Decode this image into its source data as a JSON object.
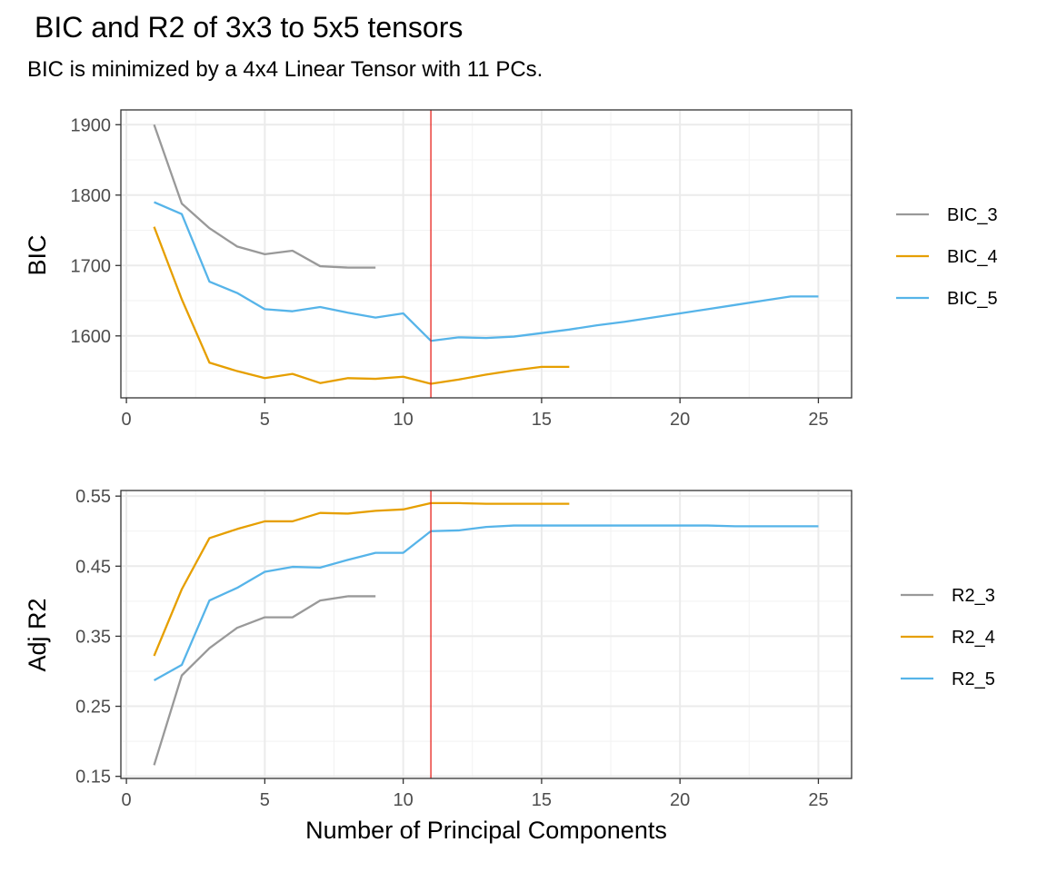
{
  "chart_data": {
    "title": "BIC and R2 of 3x3 to 5x5 tensors",
    "subtitle": "BIC is minimized by a 4x4 Linear Tensor with 11 PCs.",
    "xlabel": "Number of Principal Components",
    "colors": {
      "c3": "#999999",
      "c4": "#E69F00",
      "c5": "#56B4E9",
      "vline": "#E8231E"
    },
    "vline_x": 11,
    "grid": true,
    "legend_position": "right",
    "panels": [
      {
        "type": "line",
        "ylabel": "BIC",
        "xlim": [
          -0.2,
          26.2
        ],
        "ylim": [
          1512,
          1921
        ],
        "x_ticks": [
          0,
          5,
          10,
          15,
          20,
          25
        ],
        "x_tick_labels": [
          "0",
          "5",
          "10",
          "15",
          "20",
          "25"
        ],
        "y_ticks": [
          1600,
          1700,
          1800,
          1900
        ],
        "y_tick_labels": [
          "1600",
          "1700",
          "1800",
          "1900"
        ],
        "series": [
          {
            "name": "BIC_3",
            "color_key": "c3",
            "x": [
              1,
              2,
              3,
              4,
              5,
              6,
              7,
              8,
              9
            ],
            "y": [
              1900,
              1788,
              1753,
              1727,
              1716,
              1721,
              1699,
              1697,
              1697
            ]
          },
          {
            "name": "BIC_4",
            "color_key": "c4",
            "x": [
              1,
              2,
              3,
              4,
              5,
              6,
              7,
              8,
              9,
              10,
              11,
              12,
              13,
              14,
              15,
              16
            ],
            "y": [
              1755,
              1652,
              1562,
              1550,
              1540,
              1546,
              1533,
              1540,
              1539,
              1542,
              1532,
              1538,
              1545,
              1551,
              1556,
              1556
            ]
          },
          {
            "name": "BIC_5",
            "color_key": "c5",
            "x": [
              1,
              2,
              3,
              4,
              5,
              6,
              7,
              8,
              9,
              10,
              11,
              12,
              13,
              14,
              15,
              16,
              17,
              18,
              19,
              20,
              21,
              22,
              23,
              24,
              25
            ],
            "y": [
              1790,
              1773,
              1677,
              1661,
              1638,
              1635,
              1641,
              1633,
              1626,
              1632,
              1593,
              1598,
              1597,
              1599,
              1604,
              1609,
              1615,
              1620,
              1626,
              1632,
              1638,
              1644,
              1650,
              1656,
              1656
            ]
          }
        ]
      },
      {
        "type": "line",
        "ylabel": "Adj R2",
        "xlim": [
          -0.2,
          26.2
        ],
        "ylim": [
          0.147,
          0.558
        ],
        "x_ticks": [
          0,
          5,
          10,
          15,
          20,
          25
        ],
        "x_tick_labels": [
          "0",
          "5",
          "10",
          "15",
          "20",
          "25"
        ],
        "y_ticks": [
          0.15,
          0.25,
          0.35,
          0.45,
          0.55
        ],
        "y_tick_labels": [
          "0.15",
          "0.25",
          "0.35",
          "0.45",
          "0.55"
        ],
        "series": [
          {
            "name": "R2_3",
            "color_key": "c3",
            "x": [
              1,
              2,
              3,
              4,
              5,
              6,
              7,
              8,
              9
            ],
            "y": [
              0.166,
              0.294,
              0.333,
              0.362,
              0.377,
              0.377,
              0.401,
              0.407,
              0.407
            ]
          },
          {
            "name": "R2_4",
            "color_key": "c4",
            "x": [
              1,
              2,
              3,
              4,
              5,
              6,
              7,
              8,
              9,
              10,
              11,
              12,
              13,
              14,
              15,
              16
            ],
            "y": [
              0.322,
              0.417,
              0.49,
              0.503,
              0.514,
              0.514,
              0.526,
              0.525,
              0.529,
              0.531,
              0.54,
              0.54,
              0.539,
              0.539,
              0.539,
              0.539
            ]
          },
          {
            "name": "R2_5",
            "color_key": "c5",
            "x": [
              1,
              2,
              3,
              4,
              5,
              6,
              7,
              8,
              9,
              10,
              11,
              12,
              13,
              14,
              15,
              16,
              17,
              18,
              19,
              20,
              21,
              22,
              23,
              24,
              25
            ],
            "y": [
              0.287,
              0.309,
              0.401,
              0.419,
              0.442,
              0.449,
              0.448,
              0.459,
              0.469,
              0.469,
              0.5,
              0.501,
              0.506,
              0.508,
              0.508,
              0.508,
              0.508,
              0.508,
              0.508,
              0.508,
              0.508,
              0.507,
              0.507,
              0.507,
              0.507
            ]
          }
        ]
      }
    ]
  }
}
